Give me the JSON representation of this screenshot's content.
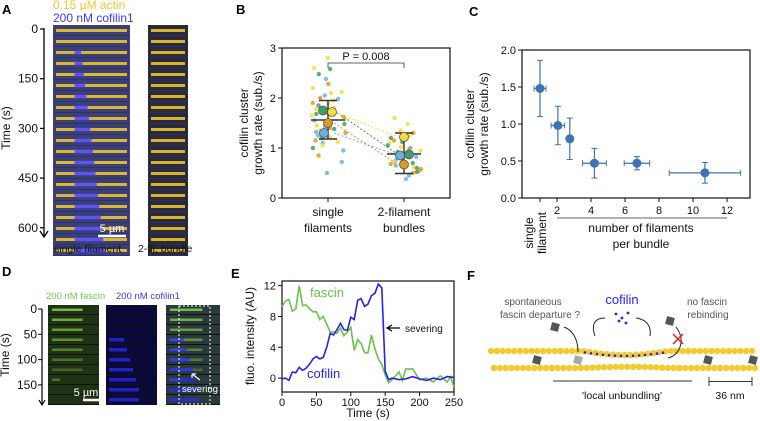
{
  "panels": {
    "A": {
      "label": "A",
      "legend_actin": "0.15 µM actin",
      "legend_cofilin": "200 nM cofilin1",
      "ylabel": "Time (s)",
      "yticks": [
        "0",
        "150",
        "300",
        "450",
        "600"
      ],
      "scalebar": "5 µm",
      "caption_left": "single filament",
      "caption_right": "2-fil. bundle"
    },
    "B": {
      "label": "B"
    },
    "C": {
      "label": "C"
    },
    "D": {
      "label": "D",
      "legend_fascin": "200 nM fascin",
      "legend_cofilin": "200 nM cofilin1",
      "ylabel": "Time (s)",
      "yticks": [
        "0",
        "50",
        "100",
        "150"
      ],
      "scalebar": "5 µm",
      "annotation": "severing"
    },
    "E": {
      "label": "E"
    },
    "F": {
      "label": "F",
      "cofilin": "cofilin",
      "departure_line1": "spontaneous",
      "departure_line2": "fascin departure ?",
      "rebinding_line1": "no fascin",
      "rebinding_line2": "rebinding",
      "unbundling": "'local unbundling'",
      "scale": "36 nm"
    }
  },
  "colors": {
    "actin": "#f2cc2e",
    "cofilin": "#2323ee",
    "fascin": "#6cc24a",
    "markers": "#3d72b5",
    "yellow": "#f5dc3c",
    "green": "#3f9e6a",
    "orange": "#dd9a22",
    "blue": "#6bb0e4"
  },
  "chart_data": [
    {
      "id": "B",
      "type": "scatter",
      "ylabel_line1": "cofilin cluster",
      "ylabel_line2": "growth rate (sub./s)",
      "categories": [
        "single filaments",
        "2-filament bundles"
      ],
      "category_lines": [
        [
          "single",
          "filaments"
        ],
        [
          "2-filament",
          "bundles"
        ]
      ],
      "ylim": [
        0,
        3
      ],
      "yticks": [
        "0",
        "1",
        "2",
        "3"
      ],
      "annotation": "P = 0.008",
      "replicate_means": [
        {
          "color": "green",
          "values": [
            1.75,
            0.87
          ]
        },
        {
          "color": "yellow",
          "values": [
            1.72,
            1.22
          ]
        },
        {
          "color": "orange",
          "values": [
            1.5,
            0.67
          ]
        },
        {
          "color": "blue",
          "values": [
            1.3,
            0.85
          ]
        }
      ],
      "summary": [
        {
          "mean": 1.56,
          "low": 1.18,
          "high": 1.95
        },
        {
          "mean": 0.88,
          "low": 0.49,
          "high": 1.3
        }
      ],
      "points": [
        [
          [
            2.8,
            "yellow"
          ],
          [
            2.58,
            "green"
          ],
          [
            2.6,
            "yellow"
          ],
          [
            2.48,
            "green"
          ],
          [
            2.38,
            "blue"
          ],
          [
            2.28,
            "orange"
          ],
          [
            2.2,
            "yellow"
          ],
          [
            2.12,
            "yellow"
          ],
          [
            2.1,
            "yellow"
          ],
          [
            2.05,
            "blue"
          ],
          [
            2.0,
            "orange"
          ],
          [
            1.98,
            "blue"
          ],
          [
            1.95,
            "yellow"
          ],
          [
            1.9,
            "orange"
          ],
          [
            1.88,
            "yellow"
          ],
          [
            1.85,
            "green"
          ],
          [
            1.8,
            "yellow"
          ],
          [
            1.78,
            "yellow"
          ],
          [
            1.75,
            "blue"
          ],
          [
            1.7,
            "orange"
          ],
          [
            1.68,
            "green"
          ],
          [
            1.65,
            "yellow"
          ],
          [
            1.62,
            "orange"
          ],
          [
            1.58,
            "yellow"
          ],
          [
            1.55,
            "blue"
          ],
          [
            1.52,
            "yellow"
          ],
          [
            1.48,
            "green"
          ],
          [
            1.45,
            "yellow"
          ],
          [
            1.42,
            "blue"
          ],
          [
            1.4,
            "orange"
          ],
          [
            1.38,
            "green"
          ],
          [
            1.35,
            "yellow"
          ],
          [
            1.32,
            "blue"
          ],
          [
            1.3,
            "orange"
          ],
          [
            1.28,
            "orange"
          ],
          [
            1.25,
            "blue"
          ],
          [
            1.22,
            "yellow"
          ],
          [
            1.2,
            "green"
          ],
          [
            1.15,
            "orange"
          ],
          [
            1.12,
            "yellow"
          ],
          [
            1.1,
            "blue"
          ],
          [
            1.05,
            "yellow"
          ],
          [
            1.0,
            "green"
          ],
          [
            0.95,
            "blue"
          ],
          [
            0.85,
            "orange"
          ],
          [
            0.72,
            "blue"
          ],
          [
            0.5,
            "blue"
          ]
        ],
        [
          [
            1.6,
            "yellow"
          ],
          [
            1.48,
            "yellow"
          ],
          [
            1.35,
            "yellow"
          ],
          [
            1.3,
            "orange"
          ],
          [
            1.25,
            "yellow"
          ],
          [
            1.2,
            "green"
          ],
          [
            1.15,
            "orange"
          ],
          [
            1.12,
            "green"
          ],
          [
            1.1,
            "yellow"
          ],
          [
            1.05,
            "green"
          ],
          [
            1.02,
            "yellow"
          ],
          [
            1.0,
            "blue"
          ],
          [
            0.98,
            "orange"
          ],
          [
            0.95,
            "yellow"
          ],
          [
            0.92,
            "green"
          ],
          [
            0.9,
            "blue"
          ],
          [
            0.88,
            "orange"
          ],
          [
            0.85,
            "yellow"
          ],
          [
            0.82,
            "blue"
          ],
          [
            0.8,
            "green"
          ],
          [
            0.78,
            "orange"
          ],
          [
            0.75,
            "blue"
          ],
          [
            0.72,
            "yellow"
          ],
          [
            0.7,
            "green"
          ],
          [
            0.68,
            "orange"
          ],
          [
            0.65,
            "blue"
          ],
          [
            0.62,
            "yellow"
          ],
          [
            0.6,
            "green"
          ],
          [
            0.58,
            "orange"
          ],
          [
            0.55,
            "orange"
          ],
          [
            0.52,
            "green"
          ],
          [
            0.5,
            "orange"
          ],
          [
            0.45,
            "blue"
          ],
          [
            0.38,
            "blue"
          ]
        ]
      ]
    },
    {
      "id": "C",
      "type": "scatter",
      "ylabel_line1": "cofilin cluster",
      "ylabel_line2": "growth rate (sub./s)",
      "xlabel_line1": "number of filaments",
      "xlabel_line2": "per bundle",
      "single_label_line1": "single",
      "single_label_line2": "filament",
      "xlim": [
        -0.06,
        13.35
      ],
      "ylim": [
        0,
        2
      ],
      "xticks": [
        "2",
        "4",
        "6",
        "8",
        "10",
        "12"
      ],
      "yticks": [
        "0.0",
        "0.5",
        "1.0",
        "1.5",
        "2.0"
      ],
      "points": [
        {
          "x": 1,
          "y": 1.48,
          "xerr": 0.35,
          "yerr": 0.38
        },
        {
          "x": 2.05,
          "y": 0.98,
          "xerr": 0.4,
          "yerr": 0.26
        },
        {
          "x": 2.75,
          "y": 0.8,
          "xerr": 0.12,
          "yerr": 0.28
        },
        {
          "x": 4.2,
          "y": 0.47,
          "xerr": 0.7,
          "yerr": 0.2
        },
        {
          "x": 6.7,
          "y": 0.47,
          "xerr": 0.75,
          "yerr": 0.09
        },
        {
          "x": 10.7,
          "y": 0.34,
          "xerr": 2.1,
          "yerr": 0.14
        }
      ]
    },
    {
      "id": "E",
      "type": "line",
      "xlabel": "Time (s)",
      "ylabel": "fluo. intensity (AU)",
      "xlim": [
        0,
        250
      ],
      "ylim": [
        -1.8,
        12.6
      ],
      "xticks": [
        "0",
        "50",
        "100",
        "150",
        "200",
        "250"
      ],
      "yticks": [
        "0",
        "4",
        "8",
        "12"
      ],
      "annotation": "severing",
      "series": [
        {
          "name": "fascin",
          "color": "fascin",
          "x": [
            0,
            5,
            10,
            15,
            20,
            25,
            30,
            35,
            40,
            45,
            50,
            55,
            60,
            65,
            70,
            75,
            80,
            85,
            90,
            95,
            100,
            105,
            110,
            115,
            120,
            125,
            130,
            135,
            140,
            145,
            150,
            155,
            160,
            170,
            175,
            180,
            190,
            200,
            210,
            220,
            230,
            240,
            245,
            250
          ],
          "y": [
            9.3,
            10,
            10.2,
            8.7,
            9,
            12,
            9.4,
            9.5,
            9,
            8.6,
            8.6,
            7.6,
            8,
            7,
            6,
            6,
            5.8,
            6.5,
            5.5,
            6,
            6.6,
            3.6,
            5,
            4.5,
            3.3,
            3.3,
            5.6,
            3.8,
            2.5,
            1.8,
            0.4,
            -0.6,
            -0.2,
            0.8,
            -0.3,
            1.2,
            1.2,
            -0.2,
            0,
            -0.5,
            0.3,
            -0.5,
            0.2,
            -1.2
          ]
        },
        {
          "name": "cofilin",
          "color": "cofilin",
          "x": [
            0,
            5,
            10,
            15,
            20,
            25,
            30,
            35,
            40,
            45,
            50,
            55,
            60,
            65,
            70,
            75,
            80,
            85,
            90,
            95,
            100,
            105,
            110,
            115,
            120,
            125,
            130,
            135,
            140,
            145,
            150,
            155,
            160,
            170,
            180,
            190,
            200,
            210,
            220,
            230,
            240,
            250
          ],
          "y": [
            -0.1,
            0,
            -0.3,
            0.8,
            0.7,
            1.4,
            1,
            1.3,
            1.8,
            2.5,
            2.8,
            2.5,
            2.7,
            4,
            5.8,
            5.6,
            6.3,
            7.1,
            6.3,
            6.2,
            7.9,
            7.6,
            10.1,
            10.3,
            9.3,
            9.6,
            10.7,
            11,
            12.2,
            11.7,
            0.9,
            -0.2,
            0,
            -0.2,
            -0.1,
            0.2,
            -0.1,
            -0.3,
            0,
            -0.2,
            0.2,
            0.1
          ]
        }
      ]
    }
  ]
}
